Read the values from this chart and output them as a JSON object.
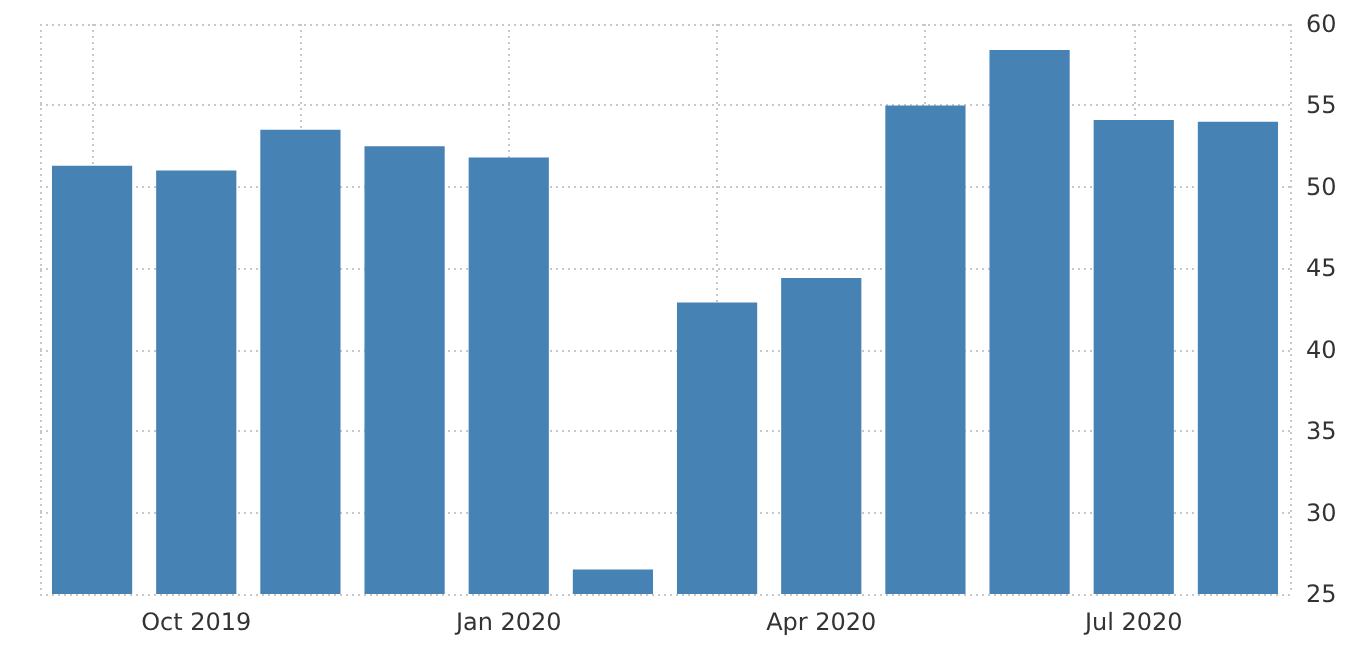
{
  "chart_data": {
    "type": "bar",
    "categories": [
      null,
      "Oct 2019",
      null,
      null,
      "Jan 2020",
      null,
      null,
      "Apr 2020",
      null,
      null,
      "Jul 2020",
      null
    ],
    "values": [
      51.3,
      51.0,
      53.5,
      52.5,
      51.8,
      26.5,
      42.9,
      44.4,
      55.0,
      58.4,
      54.1,
      54.0
    ],
    "color": "#4682b4",
    "ylim": [
      25,
      60
    ],
    "yticks": [
      25,
      30,
      35,
      40,
      45,
      50,
      55,
      60
    ],
    "grid": true
  }
}
